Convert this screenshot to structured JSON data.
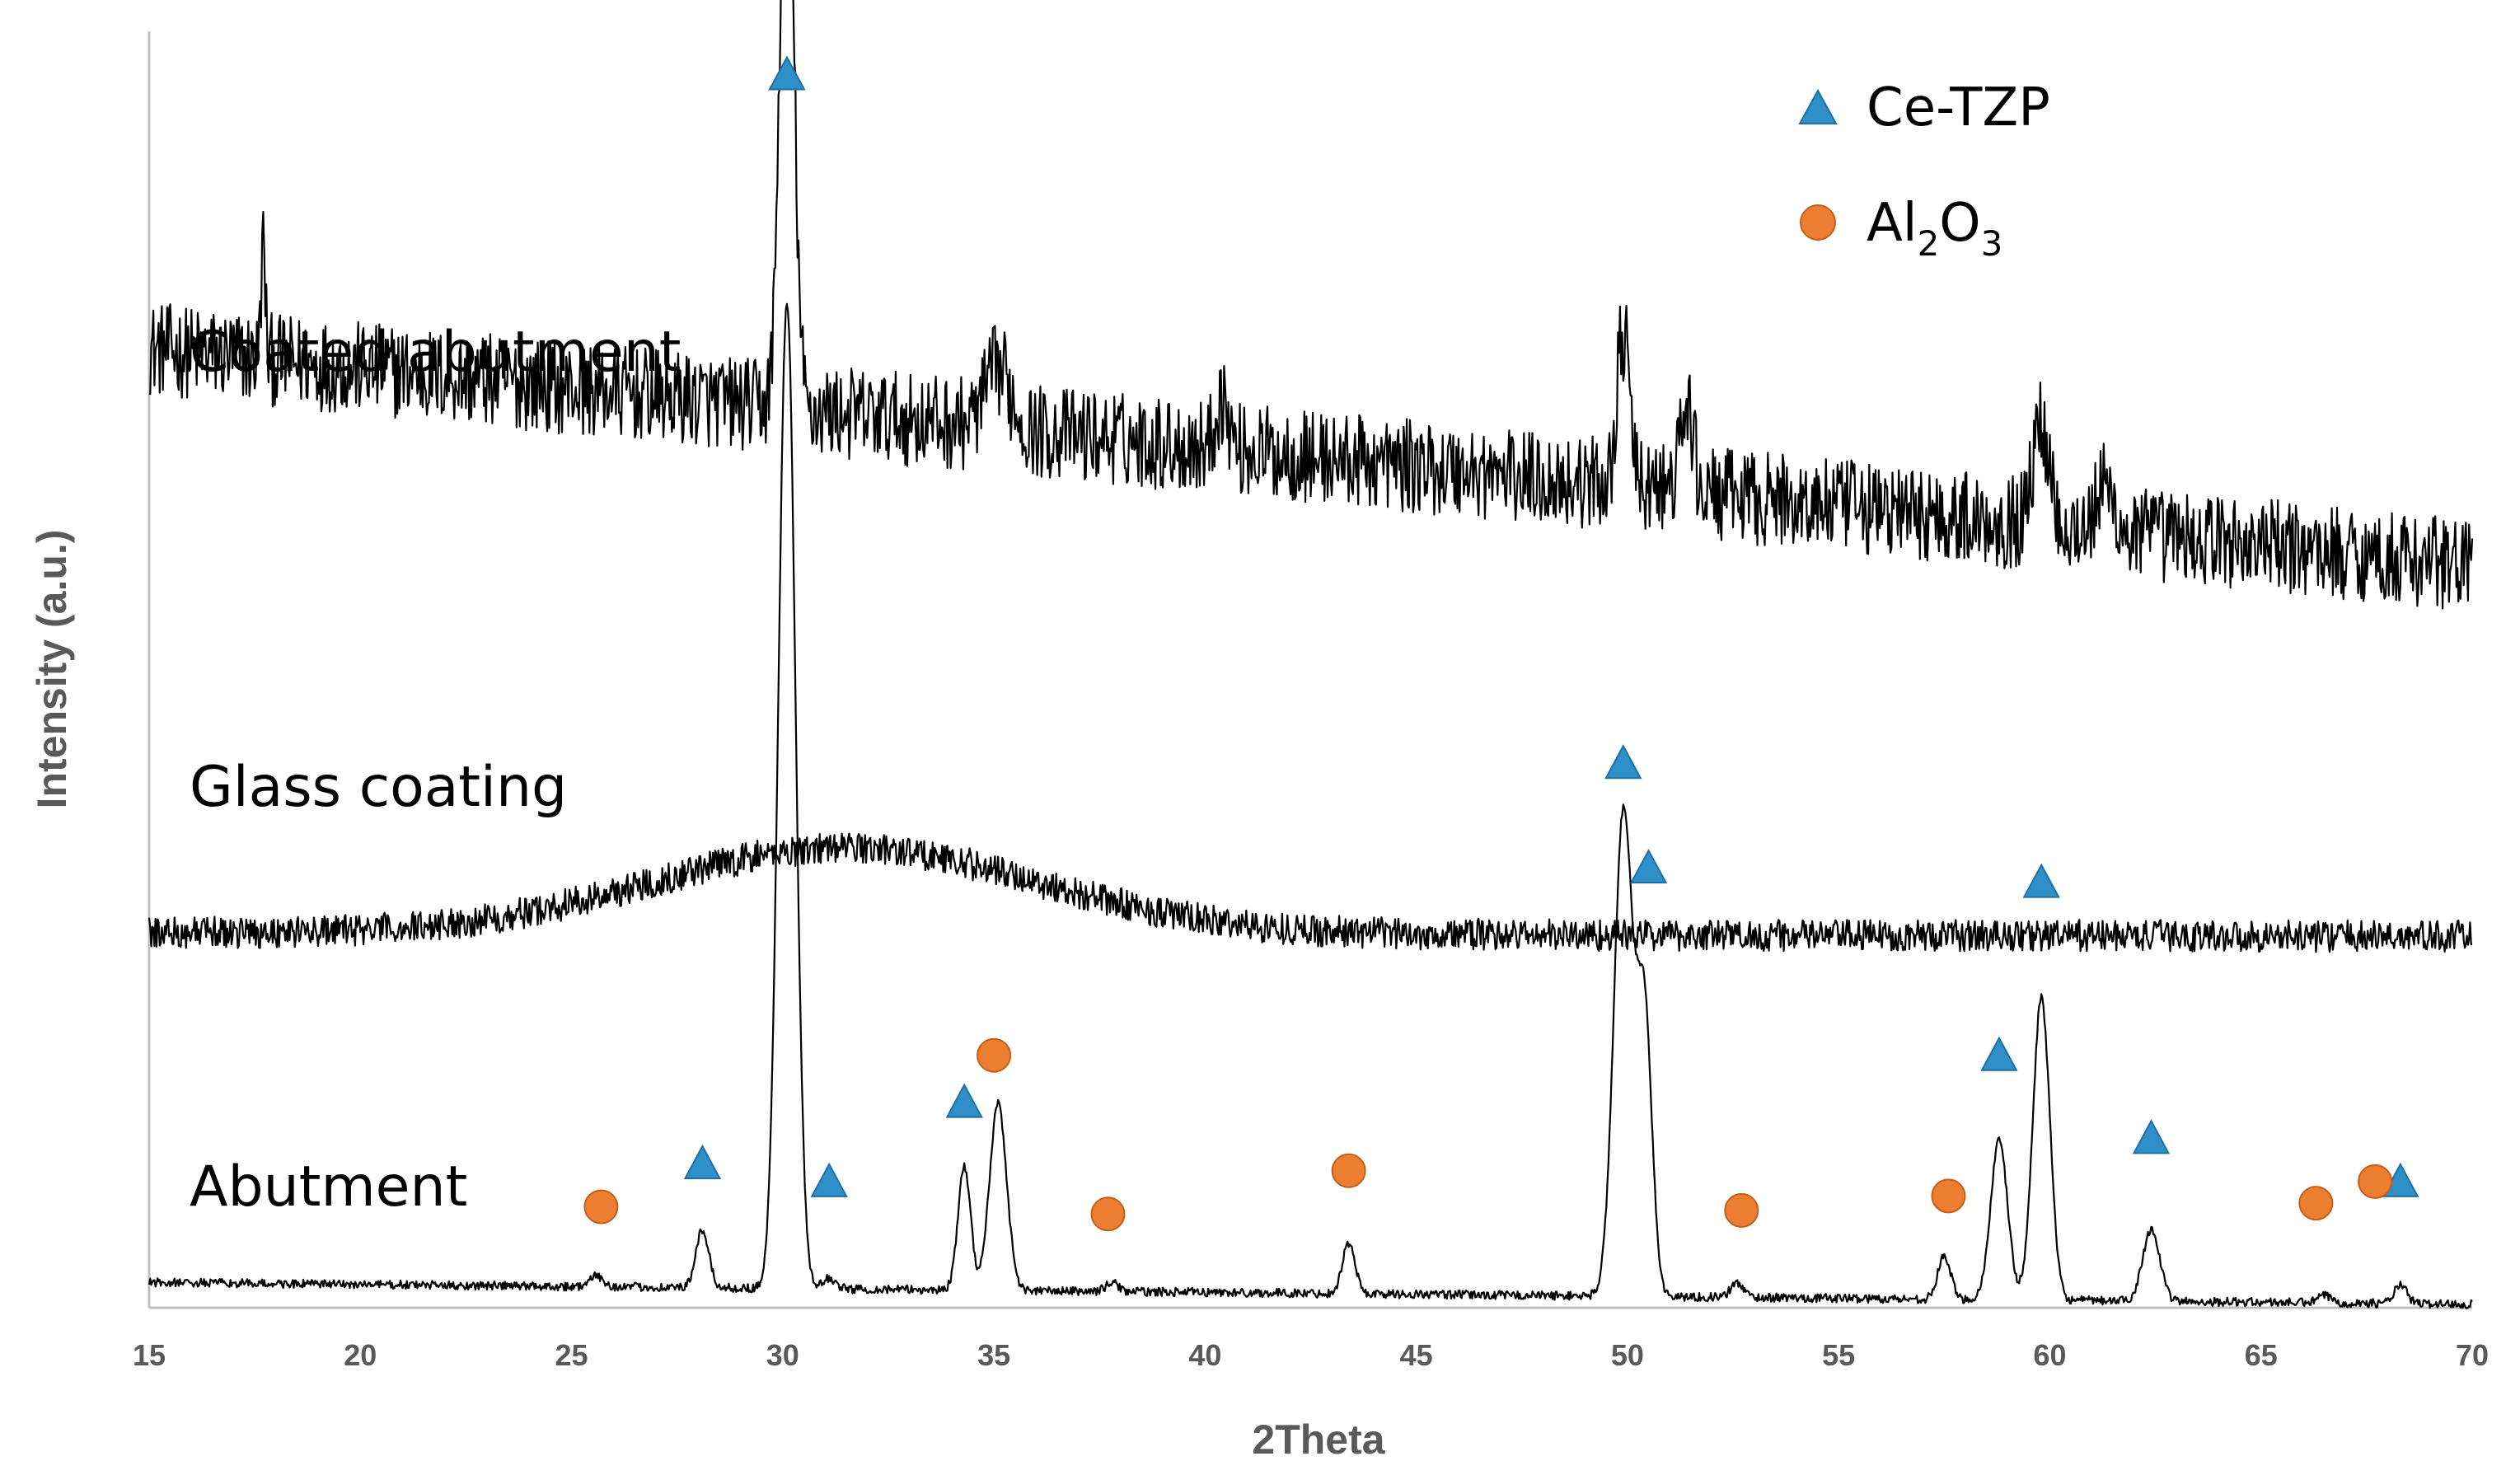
{
  "chart_data": {
    "type": "line",
    "title": "",
    "xlabel": "2Theta",
    "ylabel": "Intensity (a.u.)",
    "xlim": [
      15,
      70
    ],
    "xticks": [
      15,
      20,
      25,
      30,
      35,
      40,
      45,
      50,
      55,
      60,
      65,
      70
    ],
    "y_ticks_shown": false,
    "grid": false,
    "legend_position": "top-right",
    "legend": [
      {
        "name": "Ce-TZP",
        "marker": "triangle",
        "color": "#2E8FC9"
      },
      {
        "name": "Al",
        "sub1": "2",
        "mid": "O",
        "sub2": "3",
        "marker": "circle",
        "color": "#ED7D31"
      }
    ],
    "series": [
      {
        "name": "Coated abutment",
        "baseline_start": 13.3,
        "baseline_end": 10.3,
        "noise": 0.65,
        "peaks": [
          [
            17.7,
            1.6,
            0.05
          ],
          [
            30.1,
            8.9,
            0.16
          ],
          [
            35.1,
            0.8,
            0.3
          ],
          [
            40.4,
            0.7,
            0.15
          ],
          [
            49.9,
            2.1,
            0.15
          ],
          [
            51.4,
            1.2,
            0.15
          ],
          [
            59.8,
            1.4,
            0.2
          ],
          [
            61.3,
            0.6,
            0.2
          ]
        ]
      },
      {
        "name": "Glass coating",
        "baseline_start": 5.2,
        "baseline_end": 5.15,
        "noise": 0.22,
        "hump": [
          31.5,
          1.2,
          4.5
        ],
        "peaks": []
      },
      {
        "name": "Abutment",
        "baseline_start": 0.35,
        "baseline_end": 0.05,
        "noise": 0.06,
        "peaks": [
          [
            25.6,
            0.15,
            0.15
          ],
          [
            28.1,
            0.8,
            0.15
          ],
          [
            30.1,
            13.7,
            0.2
          ],
          [
            31.1,
            0.15,
            0.15
          ],
          [
            34.3,
            1.7,
            0.15
          ],
          [
            35.1,
            2.6,
            0.2
          ],
          [
            37.8,
            0.12,
            0.15
          ],
          [
            43.4,
            0.7,
            0.15
          ],
          [
            49.9,
            6.7,
            0.22
          ],
          [
            50.4,
            3.9,
            0.18
          ],
          [
            52.6,
            0.2,
            0.15
          ],
          [
            57.5,
            0.6,
            0.15
          ],
          [
            58.8,
            2.2,
            0.2
          ],
          [
            59.8,
            4.2,
            0.2
          ],
          [
            62.4,
            1.0,
            0.2
          ],
          [
            66.5,
            0.1,
            0.15
          ],
          [
            68.3,
            0.25,
            0.15
          ]
        ]
      }
    ],
    "markers": [
      {
        "phase": "Ce-TZP",
        "x": 30.1,
        "y": 17.1
      },
      {
        "phase": "Ce-TZP",
        "x": 28.1,
        "y": 2.0
      },
      {
        "phase": "Ce-TZP",
        "x": 31.1,
        "y": 1.75
      },
      {
        "phase": "Ce-TZP",
        "x": 34.3,
        "y": 2.85
      },
      {
        "phase": "Ce-TZP",
        "x": 49.9,
        "y": 7.55
      },
      {
        "phase": "Ce-TZP",
        "x": 50.5,
        "y": 6.1
      },
      {
        "phase": "Ce-TZP",
        "x": 58.8,
        "y": 3.5
      },
      {
        "phase": "Ce-TZP",
        "x": 59.8,
        "y": 5.9
      },
      {
        "phase": "Ce-TZP",
        "x": 62.4,
        "y": 2.35
      },
      {
        "phase": "Ce-TZP",
        "x": 68.3,
        "y": 1.75
      },
      {
        "phase": "Al2O3",
        "x": 25.7,
        "y": 1.4
      },
      {
        "phase": "Al2O3",
        "x": 35.0,
        "y": 3.5
      },
      {
        "phase": "Al2O3",
        "x": 37.7,
        "y": 1.3
      },
      {
        "phase": "Al2O3",
        "x": 43.4,
        "y": 1.9
      },
      {
        "phase": "Al2O3",
        "x": 52.7,
        "y": 1.35
      },
      {
        "phase": "Al2O3",
        "x": 57.6,
        "y": 1.55
      },
      {
        "phase": "Al2O3",
        "x": 66.3,
        "y": 1.45
      },
      {
        "phase": "Al2O3",
        "x": 67.7,
        "y": 1.75
      }
    ],
    "ylim": [
      0,
      17.7
    ]
  }
}
